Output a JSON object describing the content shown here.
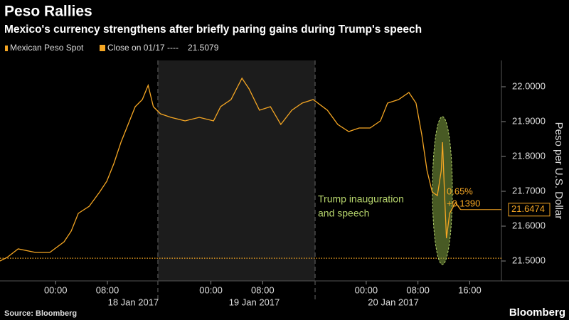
{
  "chart_data": {
    "type": "line",
    "title": "Peso Rallies",
    "subtitle": "Mexico's currency strengthens after briefly paring gains during Trump's speech",
    "y_label": "Peso per U.S. Dollar",
    "source": "Source: Bloomberg",
    "brand": "Bloomberg",
    "series": [
      {
        "name": "Mexican Peso Spot",
        "color": "#f5a623",
        "x": [
          -8.6,
          -7.5,
          -5.8,
          -3.1,
          -0.9,
          1.3,
          2.4,
          3.5,
          5.2,
          6.8,
          7.9,
          9.0,
          10.1,
          11.2,
          12.3,
          13.4,
          14.3,
          15.1,
          16.2,
          17.8,
          20.0,
          22.2,
          24.4,
          25.5,
          27.1,
          28.8,
          29.9,
          31.5,
          33.2,
          34.8,
          36.5,
          38.1,
          39.8,
          42.0,
          43.6,
          45.3,
          46.9,
          48.6,
          50.2,
          51.3,
          53.0,
          54.6,
          55.7,
          56.6,
          57.4,
          58.2,
          59.0,
          59.6,
          59.8,
          60.1,
          60.4,
          60.9,
          61.8,
          62.6
        ],
        "values": [
          21.5,
          21.5102,
          21.5347,
          21.5245,
          21.5245,
          21.5551,
          21.5857,
          21.6367,
          21.6571,
          21.698,
          21.7286,
          21.7796,
          21.8408,
          21.8918,
          21.9429,
          21.9633,
          22.0041,
          21.9429,
          21.9224,
          21.9122,
          21.902,
          21.9122,
          21.902,
          21.9429,
          21.9633,
          22.0245,
          21.9939,
          21.9327,
          21.9429,
          21.8918,
          21.9327,
          21.9531,
          21.9633,
          21.9327,
          21.8918,
          21.8714,
          21.8816,
          21.8816,
          21.902,
          21.9531,
          21.9633,
          21.9837,
          21.9531,
          21.8612,
          21.7592,
          21.698,
          21.6878,
          21.7592,
          21.8408,
          21.698,
          21.5653,
          21.6367,
          21.6673,
          21.6474
        ]
      }
    ],
    "close": {
      "label": "Close on 01/17 ----",
      "value": 21.5079,
      "color": "#f5a623"
    },
    "annotation": [
      "Trump inauguration",
      "and speech"
    ],
    "annotation_color": "#b5d36b",
    "change_labels": [
      "0.65%",
      "+0.1390"
    ],
    "xlim": [
      -8.6,
      68.9
    ],
    "xticks": [
      {
        "value": 0,
        "label": "00:00"
      },
      {
        "value": 8,
        "label": "08:00"
      },
      {
        "value": 24,
        "label": "00:00"
      },
      {
        "value": 32,
        "label": "08:00"
      },
      {
        "value": 48,
        "label": "00:00"
      },
      {
        "value": 56,
        "label": "08:00"
      },
      {
        "value": 64,
        "label": "16:00"
      }
    ],
    "date_labels": [
      {
        "value": 12.0,
        "label": "18 Jan 2017"
      },
      {
        "value": 30.7,
        "label": "19 Jan 2017"
      },
      {
        "value": 52.2,
        "label": "20 Jan 2017"
      }
    ],
    "shaded_range": [
      15.8,
      40.1
    ],
    "ylim": [
      21.4429,
      22.0755
    ],
    "yticks": [
      {
        "value": 21.5,
        "label": "21.5000"
      },
      {
        "value": 21.6,
        "label": "21.6000"
      },
      {
        "value": 21.7,
        "label": "21.7000"
      },
      {
        "value": 21.8,
        "label": "21.8000"
      },
      {
        "value": 21.9,
        "label": "21.9000"
      },
      {
        "value": 22.0,
        "label": "22.0000"
      }
    ]
  }
}
